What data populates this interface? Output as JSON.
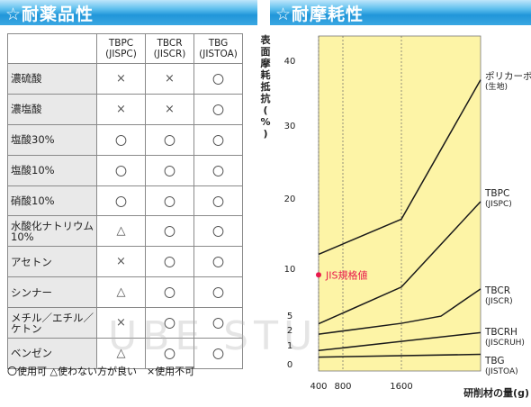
{
  "headers": {
    "left": "☆耐薬品性",
    "right": "☆耐摩耗性"
  },
  "table": {
    "columns": [
      "TBPC\n(JISPC)",
      "TBCR\n(JISCR)",
      "TBG\n(JISTOA)"
    ],
    "rows": [
      {
        "name": "濃硫酸",
        "values": [
          "×",
          "×",
          "〇"
        ]
      },
      {
        "name": "濃塩酸",
        "values": [
          "×",
          "×",
          "〇"
        ]
      },
      {
        "name": "塩酸30%",
        "values": [
          "〇",
          "〇",
          "〇"
        ]
      },
      {
        "name": "塩酸10%",
        "values": [
          "〇",
          "〇",
          "〇"
        ]
      },
      {
        "name": "硝酸10%",
        "values": [
          "〇",
          "〇",
          "〇"
        ]
      },
      {
        "name": "水酸化ナトリウム\n10%",
        "values": [
          "△",
          "〇",
          "〇"
        ]
      },
      {
        "name": "アセトン",
        "values": [
          "×",
          "〇",
          "〇"
        ]
      },
      {
        "name": "シンナー",
        "values": [
          "△",
          "〇",
          "〇"
        ]
      },
      {
        "name": "メチル／エチル／\nケトン",
        "values": [
          "×",
          "〇",
          "〇"
        ]
      },
      {
        "name": "ベンゼン",
        "values": [
          "△",
          "〇",
          "〇"
        ]
      }
    ]
  },
  "legend": "〇使用可 △使わない方が良い　×使用不可",
  "watermark": "UBE STUDIO",
  "chart_data": {
    "type": "line",
    "ylabel": "表面摩耗抵抗(%)",
    "xlabel": "研削材の量(g)",
    "x_ticks": [
      400,
      800,
      1600
    ],
    "y_ticks": [
      0,
      1,
      2,
      5,
      10,
      20,
      30,
      40
    ],
    "ylim": [
      0,
      43
    ],
    "xlim": [
      400,
      2400
    ],
    "background": "#fdf4a6",
    "grid": "dashed vertical at 400, 800, 1600",
    "series": [
      {
        "name": "ポリカーボネイト\n(生地)",
        "x": [
          400,
          1600,
          2400
        ],
        "y": [
          12,
          17,
          37
        ]
      },
      {
        "name": "TBPC\n(JISPC)",
        "x": [
          400,
          1600,
          2400
        ],
        "y": [
          3.2,
          8,
          19.5
        ]
      },
      {
        "name": "TBCR\n(JISCR)",
        "x": [
          400,
          1600,
          2000,
          2400
        ],
        "y": [
          1.7,
          3.3,
          4.8,
          7.8
        ]
      },
      {
        "name": "TBCRH\n(JISCRUH)",
        "x": [
          400,
          2400
        ],
        "y": [
          0.7,
          1.8
        ]
      },
      {
        "name": "TBG\n(JISTOA)",
        "x": [
          400,
          2400
        ],
        "y": [
          0.35,
          0.5
        ]
      }
    ],
    "annotations": [
      {
        "label": "JIS規格値",
        "x": 400,
        "y": 9.3,
        "color": "#e8194c"
      }
    ]
  }
}
